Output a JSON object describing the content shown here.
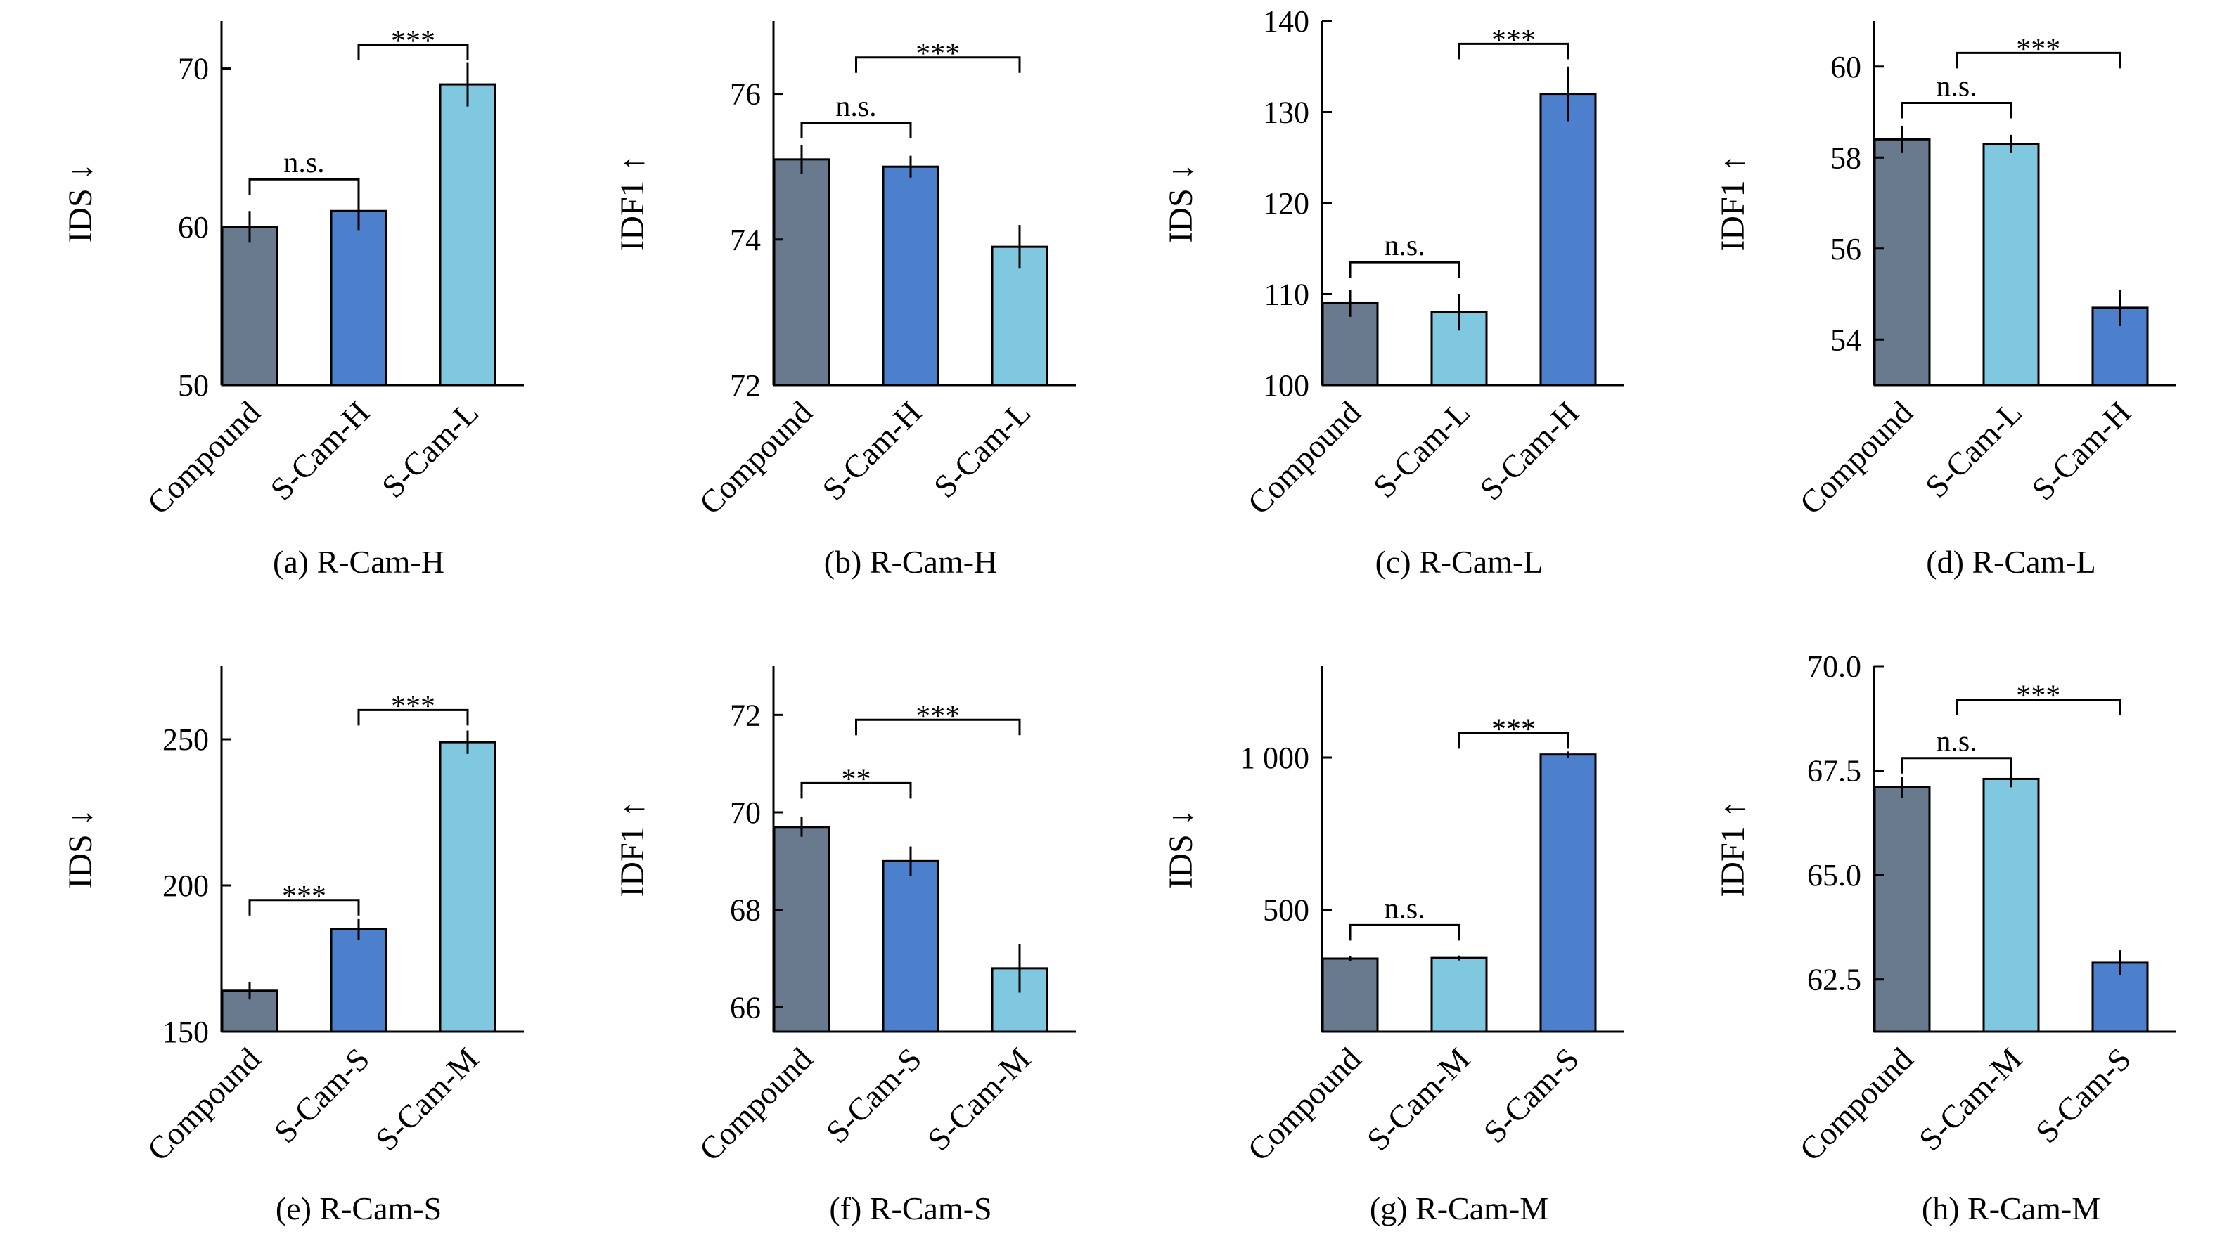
{
  "colors": {
    "Compound": "#697A8E",
    "dark_blue": "#4D80CC",
    "light_blue": "#80C7E0"
  },
  "chart_data": [
    {
      "type": "bar",
      "caption": "(a) R-Cam-H",
      "ylabel": "IDS ↓",
      "categories": [
        "Compound",
        "S-Cam-H",
        "S-Cam-L"
      ],
      "values": [
        60,
        61,
        69
      ],
      "errors": [
        1.0,
        1.2,
        1.4
      ],
      "bar_colors": [
        "Compound",
        "dark_blue",
        "light_blue"
      ],
      "ylim": [
        50,
        73
      ],
      "yticks": [
        50,
        60,
        70
      ],
      "ytick_labels": [
        "50",
        "60",
        "70"
      ],
      "significance": [
        {
          "from": 0,
          "to": 1,
          "label": "n.s.",
          "y": 63
        },
        {
          "from": 1,
          "to": 2,
          "label": "***",
          "y": 71.5
        }
      ]
    },
    {
      "type": "bar",
      "caption": "(b) R-Cam-H",
      "ylabel": "IDF1 ↑",
      "categories": [
        "Compound",
        "S-Cam-H",
        "S-Cam-L"
      ],
      "values": [
        75.1,
        75.0,
        73.9
      ],
      "errors": [
        0.2,
        0.15,
        0.3
      ],
      "bar_colors": [
        "Compound",
        "dark_blue",
        "light_blue"
      ],
      "ylim": [
        72,
        77
      ],
      "yticks": [
        72,
        74,
        76
      ],
      "ytick_labels": [
        "72",
        "74",
        "76"
      ],
      "significance": [
        {
          "from": 0,
          "to": 1,
          "label": "n.s.",
          "y": 75.6
        },
        {
          "from": 0.5,
          "to": 2,
          "label": "***",
          "y": 76.5
        }
      ]
    },
    {
      "type": "bar",
      "caption": "(c) R-Cam-L",
      "ylabel": "IDS ↓",
      "categories": [
        "Compound",
        "S-Cam-L",
        "S-Cam-H"
      ],
      "values": [
        109,
        108,
        132
      ],
      "errors": [
        1.5,
        2.0,
        3.0
      ],
      "bar_colors": [
        "Compound",
        "light_blue",
        "dark_blue"
      ],
      "ylim": [
        100,
        140
      ],
      "yticks": [
        100,
        110,
        120,
        130,
        140
      ],
      "ytick_labels": [
        "100",
        "110",
        "120",
        "130",
        "140"
      ],
      "significance": [
        {
          "from": 0,
          "to": 1,
          "label": "n.s.",
          "y": 113.5
        },
        {
          "from": 1,
          "to": 2,
          "label": "***",
          "y": 137.5
        }
      ]
    },
    {
      "type": "bar",
      "caption": "(d) R-Cam-L",
      "ylabel": "IDF1 ↑",
      "categories": [
        "Compound",
        "S-Cam-L",
        "S-Cam-H"
      ],
      "values": [
        58.4,
        58.3,
        54.7
      ],
      "errors": [
        0.3,
        0.2,
        0.4
      ],
      "bar_colors": [
        "Compound",
        "light_blue",
        "dark_blue"
      ],
      "ylim": [
        53,
        61
      ],
      "yticks": [
        54,
        56,
        58,
        60
      ],
      "ytick_labels": [
        "54",
        "56",
        "58",
        "60"
      ],
      "significance": [
        {
          "from": 0,
          "to": 1,
          "label": "n.s.",
          "y": 59.2
        },
        {
          "from": 0.5,
          "to": 2,
          "label": "***",
          "y": 60.3
        }
      ]
    },
    {
      "type": "bar",
      "caption": "(e) R-Cam-S",
      "ylabel": "IDS ↓",
      "categories": [
        "Compound",
        "S-Cam-S",
        "S-Cam-M"
      ],
      "values": [
        164,
        185,
        249
      ],
      "errors": [
        3,
        3.5,
        4
      ],
      "bar_colors": [
        "Compound",
        "dark_blue",
        "light_blue"
      ],
      "ylim": [
        150,
        275
      ],
      "yticks": [
        150,
        200,
        250
      ],
      "ytick_labels": [
        "150",
        "200",
        "250"
      ],
      "significance": [
        {
          "from": 0,
          "to": 1,
          "label": "***",
          "y": 195
        },
        {
          "from": 1,
          "to": 2,
          "label": "***",
          "y": 260
        }
      ]
    },
    {
      "type": "bar",
      "caption": "(f) R-Cam-S",
      "ylabel": "IDF1 ↑",
      "categories": [
        "Compound",
        "S-Cam-S",
        "S-Cam-M"
      ],
      "values": [
        69.7,
        69.0,
        66.8
      ],
      "errors": [
        0.2,
        0.3,
        0.5
      ],
      "bar_colors": [
        "Compound",
        "dark_blue",
        "light_blue"
      ],
      "ylim": [
        65.5,
        73
      ],
      "yticks": [
        66,
        68,
        70,
        72
      ],
      "ytick_labels": [
        "66",
        "68",
        "70",
        "72"
      ],
      "significance": [
        {
          "from": 0,
          "to": 1,
          "label": "**",
          "y": 70.6
        },
        {
          "from": 0.5,
          "to": 2,
          "label": "***",
          "y": 71.9
        }
      ]
    },
    {
      "type": "bar",
      "caption": "(g) R-Cam-M",
      "ylabel": "IDS ↓",
      "categories": [
        "Compound",
        "S-Cam-M",
        "S-Cam-S"
      ],
      "values": [
        340,
        342,
        1010
      ],
      "errors": [
        8,
        8,
        10
      ],
      "bar_colors": [
        "Compound",
        "light_blue",
        "dark_blue"
      ],
      "ylim": [
        100,
        1300
      ],
      "yticks": [
        500,
        1000
      ],
      "ytick_labels": [
        "500",
        "1 000"
      ],
      "significance": [
        {
          "from": 0,
          "to": 1,
          "label": "n.s.",
          "y": 450
        },
        {
          "from": 1,
          "to": 2,
          "label": "***",
          "y": 1080
        }
      ]
    },
    {
      "type": "bar",
      "caption": "(h) R-Cam-M",
      "ylabel": "IDF1 ↑",
      "categories": [
        "Compound",
        "S-Cam-M",
        "S-Cam-S"
      ],
      "values": [
        67.1,
        67.3,
        62.9
      ],
      "errors": [
        0.25,
        0.2,
        0.3
      ],
      "bar_colors": [
        "Compound",
        "light_blue",
        "dark_blue"
      ],
      "ylim": [
        61.25,
        70
      ],
      "yticks": [
        62.5,
        65.0,
        67.5,
        70.0
      ],
      "ytick_labels": [
        "62.5",
        "65.0",
        "67.5",
        "70.0"
      ],
      "significance": [
        {
          "from": 0,
          "to": 1,
          "label": "n.s.",
          "y": 67.8
        },
        {
          "from": 0.5,
          "to": 2,
          "label": "***",
          "y": 69.2
        }
      ]
    }
  ]
}
